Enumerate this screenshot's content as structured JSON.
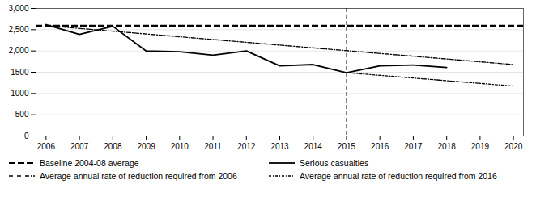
{
  "chart_data": {
    "type": "line",
    "xlim": [
      2005.7,
      2020.3
    ],
    "xticks": [
      2006,
      2007,
      2008,
      2009,
      2010,
      2011,
      2012,
      2013,
      2014,
      2015,
      2016,
      2017,
      2018,
      2019,
      2020
    ],
    "ylim": [
      0,
      3000
    ],
    "yticks": [
      0,
      500,
      1000,
      1500,
      {
        "value": 2000,
        "label": "2,000"
      },
      {
        "value": 2500,
        "label": "2,500"
      },
      {
        "value": 3000,
        "label": "3,000"
      }
    ],
    "grid": "y",
    "legend": "bottom",
    "series": [
      {
        "name": "Baseline 2004-08 average",
        "type": "hline",
        "color": "#000000",
        "line_style": "dashed",
        "values": [
          2596
        ]
      },
      {
        "name": "Serious casualties",
        "color": "#000000",
        "line_style": "solid",
        "x": [
          2006,
          2007,
          2008,
          2009,
          2010,
          2011,
          2012,
          2013,
          2014,
          2015,
          2016,
          2017,
          2018
        ],
        "values": [
          2620,
          2390,
          2580,
          2000,
          1980,
          1900,
          2000,
          1650,
          1680,
          1490,
          1650,
          1670,
          1610
        ]
      },
      {
        "name": "Average annual rate of reduction required from 2006",
        "color": "#000000",
        "line_style": "dashdot",
        "x": [
          2006,
          2020
        ],
        "values": [
          2596,
          1680
        ]
      },
      {
        "name": "Average annual rate of reduction required from 2016",
        "color": "#000000",
        "line_style": "shortdashdot",
        "x": [
          2015,
          2020
        ],
        "values": [
          1490,
          1175
        ]
      }
    ],
    "vlines": [
      {
        "x": 2015,
        "color": "#000000",
        "line_style": "dashed"
      }
    ]
  }
}
